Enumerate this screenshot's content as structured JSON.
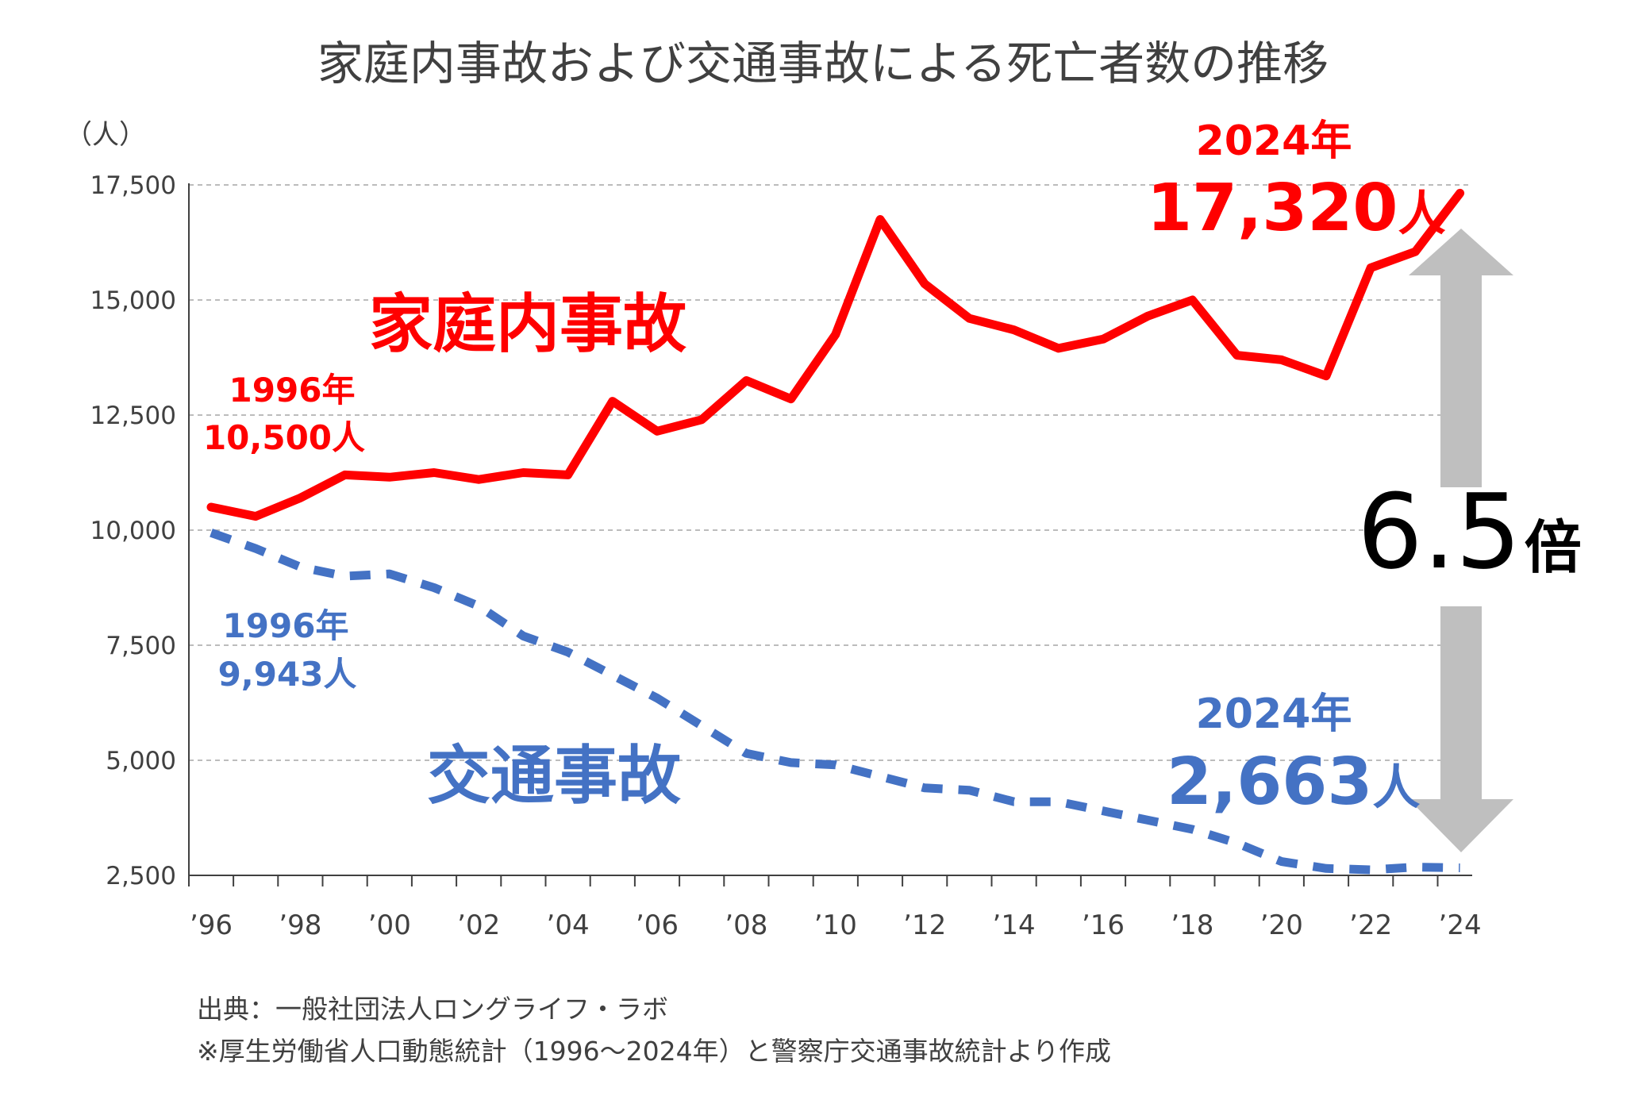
{
  "chart_data": {
    "type": "line",
    "title": "家庭内事故および交通事故による死亡者数の推移",
    "ylabel": "（人）",
    "ylim": [
      2500,
      17500
    ],
    "yticks": [
      "17,500",
      "15,000",
      "12,500",
      "10,000",
      "7,500",
      "5,000",
      "2,500"
    ],
    "ytick_values": [
      17500,
      15000,
      12500,
      10000,
      7500,
      5000,
      2500
    ],
    "x": [
      1996,
      1997,
      1998,
      1999,
      2000,
      2001,
      2002,
      2003,
      2004,
      2005,
      2006,
      2007,
      2008,
      2009,
      2010,
      2011,
      2012,
      2013,
      2014,
      2015,
      2016,
      2017,
      2018,
      2019,
      2020,
      2021,
      2022,
      2023,
      2024
    ],
    "xtick_labels": [
      "’96",
      "’98",
      "’00",
      "’02",
      "’04",
      "’06",
      "’08",
      "’10",
      "’12",
      "’14",
      "’16",
      "’18",
      "’20",
      "’22",
      "’24"
    ],
    "xtick_years": [
      1996,
      1998,
      2000,
      2002,
      2004,
      2006,
      2008,
      2010,
      2012,
      2014,
      2016,
      2018,
      2020,
      2022,
      2024
    ],
    "grid": true,
    "series": [
      {
        "name": "家庭内事故",
        "color": "#ff0000",
        "style": "solid",
        "values": [
          10500,
          10300,
          10700,
          11200,
          11150,
          11250,
          11100,
          11250,
          11200,
          12800,
          12150,
          12400,
          13250,
          12850,
          14250,
          16750,
          15350,
          14600,
          14350,
          13950,
          14150,
          14650,
          15000,
          13800,
          13700,
          13350,
          15700,
          16050,
          17320
        ]
      },
      {
        "name": "交通事故",
        "color": "#4472c4",
        "style": "dashed",
        "values": [
          9943,
          9600,
          9200,
          9000,
          9050,
          8750,
          8350,
          7700,
          7350,
          6850,
          6350,
          5750,
          5150,
          4950,
          4900,
          4650,
          4400,
          4350,
          4100,
          4100,
          3900,
          3700,
          3500,
          3200,
          2800,
          2650,
          2620,
          2680,
          2663
        ]
      }
    ],
    "annotations": {
      "red_start_year": "1996年",
      "red_start_value": "10,500人",
      "red_end_year": "2024年",
      "red_end_value": "17,320",
      "red_end_unit": "人",
      "blue_start_year": "1996年",
      "blue_start_value": "9,943人",
      "blue_end_year": "2024年",
      "blue_end_value": "2,663",
      "blue_end_unit": "人",
      "ratio_value": "6.5",
      "ratio_unit": "倍"
    },
    "source_line1": "出典：一般社団法人ロングライフ・ラボ",
    "source_line2": "※厚生労働省人口動態統計（1996～2024年）と警察庁交通事故統計より作成"
  },
  "colors": {
    "red": "#ff0000",
    "blue": "#4472c4",
    "arrow": "#bfbfbf"
  }
}
